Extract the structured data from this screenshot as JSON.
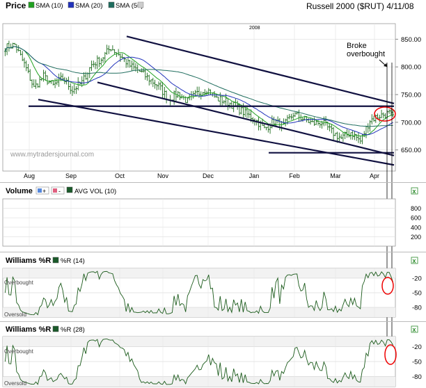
{
  "header": {
    "price_label": "Price",
    "title": "Russell 2000 ($RUT) 4/11/08",
    "sma_legends": [
      {
        "label": "SMA (10)",
        "color": "#21a121"
      },
      {
        "label": "SMA (20)",
        "color": "#2233bb"
      },
      {
        "label": "SMA (50)",
        "color": "#1f6d5e"
      }
    ]
  },
  "watermark": "www.mytradersjournal.com",
  "annotation": {
    "text_line1": "Broke",
    "text_line2": "overbought"
  },
  "volume_panel": {
    "label": "Volume",
    "plus": "+",
    "minus": "-",
    "avg_label": "AVG VOL (10)"
  },
  "williams14": {
    "label": "Williams %R",
    "series_label": "%R (14)",
    "overbought": "Overbought",
    "oversold": "Oversold"
  },
  "williams28": {
    "label": "Williams %R",
    "series_label": "%R (28)",
    "overbought": "Overbought",
    "oversold": "Oversold"
  },
  "close_icon": "x",
  "chart_data": [
    {
      "type": "bar",
      "title": "Russell 2000 ($RUT) 4/11/08",
      "ylim": [
        612,
        878
      ],
      "ytick_labels": [
        "850.00",
        "800.00",
        "750.00",
        "700.00",
        "650.00"
      ],
      "yticks": [
        850,
        800,
        750,
        700,
        650
      ],
      "x_labels": [
        "Aug",
        "Sep",
        "Oct",
        "Nov",
        "Dec",
        "Jan",
        "Feb",
        "Mar",
        "Apr"
      ],
      "year_label": "2008",
      "close_anchors": [
        [
          0,
          835
        ],
        [
          5,
          840
        ],
        [
          10,
          805
        ],
        [
          15,
          762
        ],
        [
          20,
          783
        ],
        [
          25,
          766
        ],
        [
          30,
          780
        ],
        [
          35,
          758
        ],
        [
          40,
          772
        ],
        [
          45,
          804
        ],
        [
          50,
          814
        ],
        [
          55,
          835
        ],
        [
          60,
          820
        ],
        [
          65,
          802
        ],
        [
          70,
          792
        ],
        [
          75,
          778
        ],
        [
          80,
          765
        ],
        [
          85,
          742
        ],
        [
          90,
          752
        ],
        [
          95,
          738
        ],
        [
          100,
          752
        ],
        [
          105,
          760
        ],
        [
          110,
          743
        ],
        [
          115,
          738
        ],
        [
          120,
          728
        ],
        [
          125,
          716
        ],
        [
          130,
          706
        ],
        [
          135,
          688
        ],
        [
          140,
          702
        ],
        [
          145,
          693
        ],
        [
          150,
          715
        ],
        [
          155,
          707
        ],
        [
          160,
          698
        ],
        [
          165,
          700
        ],
        [
          170,
          683
        ],
        [
          175,
          671
        ],
        [
          180,
          682
        ],
        [
          185,
          666
        ],
        [
          190,
          704
        ],
        [
          195,
          712
        ],
        [
          200,
          716
        ],
        [
          202,
          708
        ]
      ],
      "sma_periods": [
        10,
        20,
        50
      ],
      "series_colors": [
        "#21a121",
        "#2233bb",
        "#1f6d5e"
      ]
    },
    {
      "type": "bar",
      "title": "Volume",
      "ylim": [
        0,
        1000
      ],
      "ytick_labels": [
        "800",
        "600",
        "400",
        "200"
      ],
      "yticks": [
        800,
        600,
        400,
        200
      ],
      "values": []
    },
    {
      "type": "line",
      "title": "Williams %R (14)",
      "ylim": [
        -100,
        0
      ],
      "ytick_labels": [
        "-20",
        "-50",
        "-80"
      ],
      "yticks": [
        -20,
        -50,
        -80
      ]
    },
    {
      "type": "line",
      "title": "Williams %R (28)",
      "ylim": [
        -100,
        0
      ],
      "ytick_labels": [
        "-20",
        "-50",
        "-80"
      ],
      "yticks": [
        -20,
        -50,
        -80
      ]
    }
  ]
}
